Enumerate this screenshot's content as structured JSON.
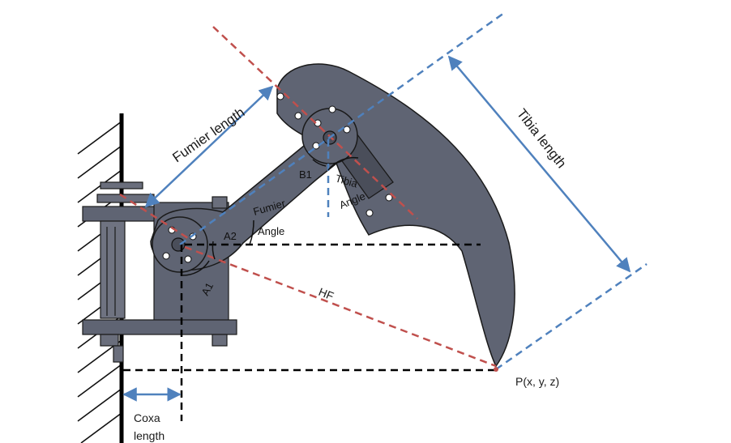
{
  "colors": {
    "body": "#5f6473",
    "body_dark": "#4a4e5a",
    "outline": "#1a1a1a",
    "red_dash": "#c0504d",
    "blue": "#4f81bd",
    "black_dash": "#000000"
  },
  "labels": {
    "fumier_length": "Fumier length",
    "tibia_length": "Tibia length",
    "fumier_angle_1": "Fumier",
    "fumier_angle_2": "Angle",
    "tibia_angle_1": "Tibia",
    "tibia_angle_2": "Angle",
    "b1": "B1",
    "a2": "A2",
    "a1": "A1",
    "hf": "HF",
    "point": "P(x, y, z)",
    "coxa_1": "Coxa",
    "coxa_2": "length"
  }
}
